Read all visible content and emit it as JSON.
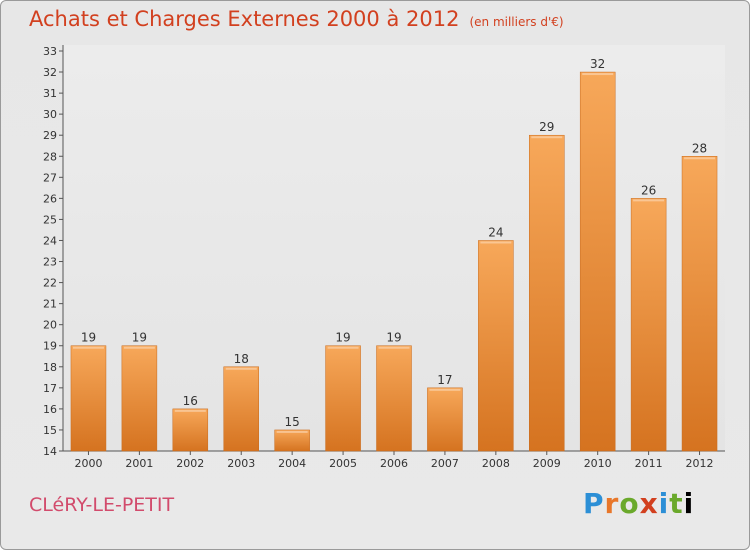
{
  "header": {
    "title": "Achats et Charges Externes 2000 à 2012",
    "subtitle": "(en milliers d'€)"
  },
  "footer": {
    "commune": "CLéRY-LE-PETIT",
    "brand": "Proxiti"
  },
  "colors": {
    "title": "#d2401f",
    "commune": "#d24b6c",
    "bar_light": "#f7a85a",
    "bar_dark": "#d57320"
  },
  "chart_data": {
    "type": "bar",
    "categories": [
      "2000",
      "2001",
      "2002",
      "2003",
      "2004",
      "2005",
      "2006",
      "2007",
      "2008",
      "2009",
      "2010",
      "2011",
      "2012"
    ],
    "values": [
      19,
      19,
      16,
      18,
      15,
      19,
      19,
      17,
      24,
      29,
      32,
      26,
      28
    ],
    "title": "Achats et Charges Externes 2000 à 2012",
    "subtitle": "(en milliers d'€)",
    "ylim": [
      14,
      33
    ],
    "yticks": [
      14,
      15,
      16,
      17,
      18,
      19,
      20,
      21,
      22,
      23,
      24,
      25,
      26,
      27,
      28,
      29,
      30,
      31,
      32,
      33
    ],
    "grid": false,
    "data_labels": true
  }
}
